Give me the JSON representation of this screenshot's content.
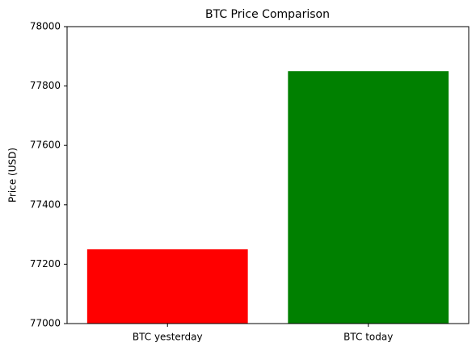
{
  "chart_data": {
    "type": "bar",
    "title": "BTC Price Comparison",
    "y_label": "Price (USD)",
    "categories": [
      "BTC yesterday",
      "BTC today"
    ],
    "values": [
      77250,
      77850
    ],
    "colors": [
      "#ff0000",
      "#008000"
    ],
    "ylim": [
      77000,
      78000
    ],
    "yticks": [
      77000,
      77200,
      77400,
      77600,
      77800,
      78000
    ],
    "grid": false
  }
}
